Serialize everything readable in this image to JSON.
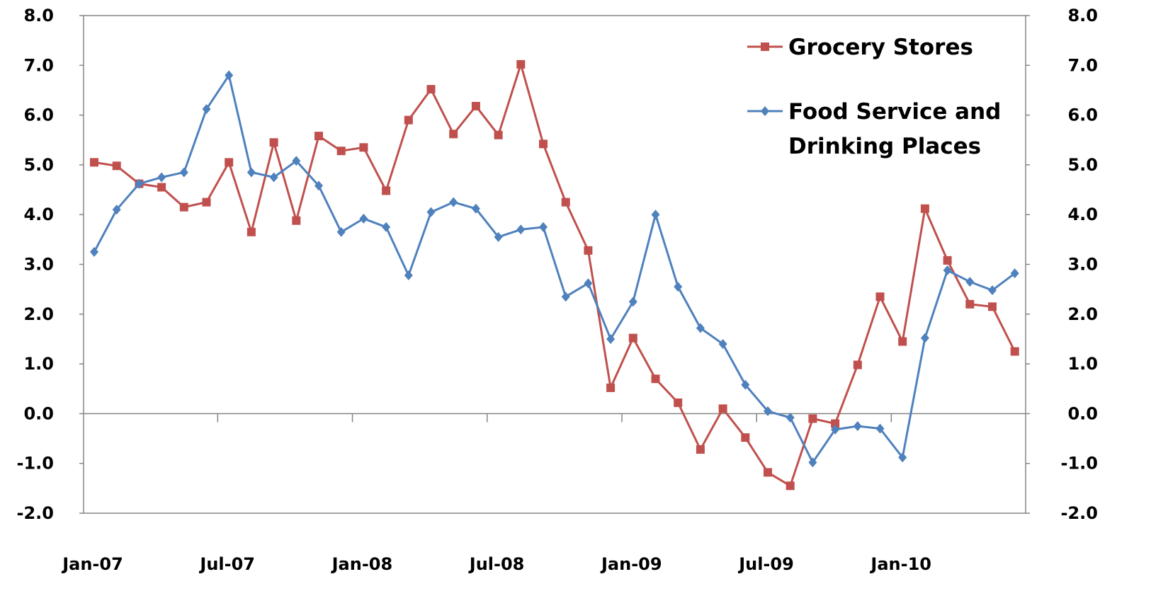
{
  "chart_data": {
    "type": "line",
    "x": [
      "Jan-07",
      "Feb-07",
      "Mar-07",
      "Apr-07",
      "May-07",
      "Jun-07",
      "Jul-07",
      "Aug-07",
      "Sep-07",
      "Oct-07",
      "Nov-07",
      "Dec-07",
      "Jan-08",
      "Feb-08",
      "Mar-08",
      "Apr-08",
      "May-08",
      "Jun-08",
      "Jul-08",
      "Aug-08",
      "Sep-08",
      "Oct-08",
      "Nov-08",
      "Dec-08",
      "Jan-09",
      "Feb-09",
      "Mar-09",
      "Apr-09",
      "May-09",
      "Jun-09",
      "Jul-09",
      "Aug-09",
      "Sep-09",
      "Oct-09",
      "Nov-09",
      "Dec-09",
      "Jan-10",
      "Feb-10",
      "Mar-10",
      "Apr-10",
      "May-10",
      "Jun-10"
    ],
    "x_tick_labels": [
      "Jan-07",
      "Jul-07",
      "Jan-08",
      "Jul-08",
      "Jan-09",
      "Jul-09",
      "Jan-10"
    ],
    "ylim": [
      -2.0,
      8.0
    ],
    "y_ticks": [
      "8.0",
      "7.0",
      "6.0",
      "5.0",
      "4.0",
      "3.0",
      "2.0",
      "1.0",
      "0.0",
      "-1.0",
      "-2.0"
    ],
    "grid": false,
    "legend_position": "top-right",
    "series": [
      {
        "name": "Grocery Stores",
        "color": "#C0504D",
        "marker": "square",
        "values": [
          5.05,
          4.98,
          4.62,
          4.55,
          4.15,
          4.25,
          5.05,
          3.65,
          5.45,
          3.88,
          5.58,
          5.28,
          5.35,
          4.48,
          5.9,
          6.52,
          5.62,
          6.18,
          5.6,
          7.02,
          5.42,
          4.25,
          3.28,
          0.52,
          1.52,
          0.7,
          0.22,
          -0.72,
          0.1,
          -0.48,
          -1.18,
          -1.45,
          -0.1,
          -0.2,
          0.98,
          2.35,
          1.45,
          4.12,
          3.08,
          2.2,
          2.15,
          1.25
        ]
      },
      {
        "name": "Food Service and Drinking Places",
        "color": "#4F81BD",
        "marker": "diamond",
        "values": [
          3.25,
          4.1,
          4.62,
          4.75,
          4.85,
          6.12,
          6.8,
          4.85,
          4.75,
          5.08,
          4.58,
          3.65,
          3.92,
          3.75,
          2.78,
          4.05,
          4.25,
          4.12,
          3.55,
          3.7,
          3.75,
          2.35,
          2.62,
          1.5,
          2.25,
          4.0,
          2.55,
          1.72,
          1.4,
          0.58,
          0.05,
          -0.08,
          -0.98,
          -0.32,
          -0.25,
          -0.3,
          -0.88,
          1.52,
          2.88,
          2.65,
          2.48,
          2.82
        ]
      }
    ]
  }
}
